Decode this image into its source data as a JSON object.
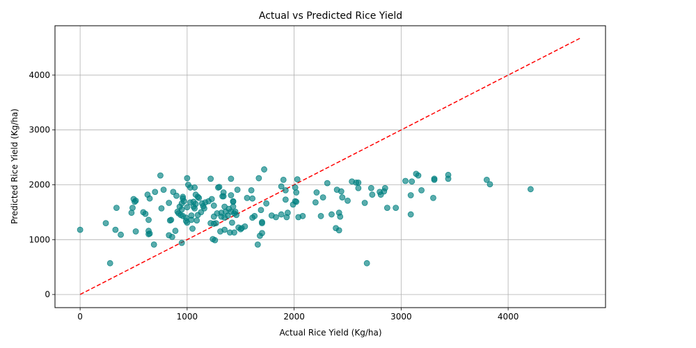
{
  "chart_data": {
    "type": "scatter",
    "title": "Actual vs Predicted Rice Yield",
    "xlabel": "Actual Rice Yield (Kg/ha)",
    "ylabel": "Predicted Rice Yield (Kg/ha)",
    "xlim": [
      -235,
      4910
    ],
    "ylim": [
      -240,
      4900
    ],
    "xticks": [
      0,
      1000,
      2000,
      3000,
      4000
    ],
    "yticks": [
      0,
      1000,
      2000,
      3000,
      4000
    ],
    "xtick_labels": [
      "0",
      "1000",
      "2000",
      "3000",
      "4000"
    ],
    "ytick_labels": [
      "0",
      "1000",
      "2000",
      "3000",
      "4000"
    ],
    "grid": true,
    "point_color": "#008080",
    "point_alpha": 0.65,
    "reference_line": {
      "x": [
        0,
        4670
      ],
      "y": [
        0,
        4670
      ],
      "color": "#ff0000",
      "style": "dashed"
    },
    "points": [
      [
        0,
        1180
      ],
      [
        240,
        1300
      ],
      [
        280,
        570
      ],
      [
        330,
        1180
      ],
      [
        340,
        1580
      ],
      [
        380,
        1090
      ],
      [
        480,
        1490
      ],
      [
        490,
        1580
      ],
      [
        500,
        1740
      ],
      [
        510,
        1690
      ],
      [
        520,
        1710
      ],
      [
        520,
        1150
      ],
      [
        590,
        1500
      ],
      [
        610,
        1470
      ],
      [
        630,
        1820
      ],
      [
        640,
        1360
      ],
      [
        640,
        1100
      ],
      [
        640,
        1160
      ],
      [
        650,
        1750
      ],
      [
        650,
        1110
      ],
      [
        690,
        910
      ],
      [
        700,
        1870
      ],
      [
        750,
        2170
      ],
      [
        760,
        1570
      ],
      [
        780,
        1910
      ],
      [
        830,
        1670
      ],
      [
        830,
        1080
      ],
      [
        840,
        1350
      ],
      [
        850,
        1360
      ],
      [
        860,
        1050
      ],
      [
        870,
        1870
      ],
      [
        890,
        1160
      ],
      [
        900,
        1800
      ],
      [
        910,
        1510
      ],
      [
        920,
        1480
      ],
      [
        930,
        1600
      ],
      [
        940,
        1450
      ],
      [
        950,
        1550
      ],
      [
        950,
        1660
      ],
      [
        950,
        940
      ],
      [
        960,
        1750
      ],
      [
        960,
        1780
      ],
      [
        960,
        1430
      ],
      [
        970,
        1700
      ],
      [
        990,
        1400
      ],
      [
        990,
        1340
      ],
      [
        1000,
        1590
      ],
      [
        1000,
        1310
      ],
      [
        1000,
        2120
      ],
      [
        1010,
        2000
      ],
      [
        1030,
        1950
      ],
      [
        1030,
        1680
      ],
      [
        1040,
        1440
      ],
      [
        1040,
        1360
      ],
      [
        1050,
        1200
      ],
      [
        1060,
        1600
      ],
      [
        1060,
        1690
      ],
      [
        1070,
        1950
      ],
      [
        1070,
        1570
      ],
      [
        1080,
        1820
      ],
      [
        1080,
        1650
      ],
      [
        1090,
        1350
      ],
      [
        1100,
        1450
      ],
      [
        1100,
        1780
      ],
      [
        1110,
        1760
      ],
      [
        1130,
        1500
      ],
      [
        1140,
        1660
      ],
      [
        1150,
        1610
      ],
      [
        1160,
        1570
      ],
      [
        1170,
        1680
      ],
      [
        1200,
        1700
      ],
      [
        1220,
        1300
      ],
      [
        1220,
        2110
      ],
      [
        1230,
        1740
      ],
      [
        1240,
        1010
      ],
      [
        1250,
        1290
      ],
      [
        1250,
        1420
      ],
      [
        1250,
        1620
      ],
      [
        1260,
        990
      ],
      [
        1270,
        1300
      ],
      [
        1280,
        1480
      ],
      [
        1290,
        1950
      ],
      [
        1300,
        1960
      ],
      [
        1310,
        1150
      ],
      [
        1320,
        1490
      ],
      [
        1320,
        1420
      ],
      [
        1330,
        1790
      ],
      [
        1340,
        1860
      ],
      [
        1340,
        1790
      ],
      [
        1350,
        1180
      ],
      [
        1350,
        1400
      ],
      [
        1350,
        1600
      ],
      [
        1360,
        1510
      ],
      [
        1380,
        1440
      ],
      [
        1390,
        1560
      ],
      [
        1400,
        1130
      ],
      [
        1410,
        2110
      ],
      [
        1410,
        1510
      ],
      [
        1410,
        1810
      ],
      [
        1420,
        1310
      ],
      [
        1430,
        1700
      ],
      [
        1430,
        1690
      ],
      [
        1430,
        1600
      ],
      [
        1440,
        1130
      ],
      [
        1440,
        1480
      ],
      [
        1450,
        1510
      ],
      [
        1460,
        1450
      ],
      [
        1470,
        1910
      ],
      [
        1480,
        1220
      ],
      [
        1500,
        1190
      ],
      [
        1510,
        1210
      ],
      [
        1540,
        1240
      ],
      [
        1560,
        1760
      ],
      [
        1600,
        1900
      ],
      [
        1610,
        1750
      ],
      [
        1610,
        1400
      ],
      [
        1630,
        1430
      ],
      [
        1660,
        910
      ],
      [
        1670,
        2120
      ],
      [
        1680,
        1070
      ],
      [
        1690,
        1540
      ],
      [
        1700,
        1120
      ],
      [
        1700,
        1300
      ],
      [
        1700,
        1320
      ],
      [
        1720,
        2280
      ],
      [
        1740,
        1660
      ],
      [
        1790,
        1440
      ],
      [
        1830,
        1410
      ],
      [
        1880,
        1970
      ],
      [
        1880,
        1460
      ],
      [
        1900,
        2090
      ],
      [
        1920,
        1730
      ],
      [
        1920,
        1900
      ],
      [
        1930,
        1410
      ],
      [
        1940,
        1490
      ],
      [
        1990,
        1640
      ],
      [
        2010,
        1700
      ],
      [
        2010,
        1950
      ],
      [
        2020,
        1860
      ],
      [
        2020,
        1690
      ],
      [
        2030,
        2100
      ],
      [
        2040,
        1410
      ],
      [
        2080,
        1430
      ],
      [
        2200,
        1680
      ],
      [
        2210,
        1860
      ],
      [
        2250,
        1430
      ],
      [
        2270,
        1770
      ],
      [
        2310,
        2030
      ],
      [
        2350,
        1460
      ],
      [
        2390,
        1210
      ],
      [
        2400,
        1910
      ],
      [
        2420,
        1170
      ],
      [
        2420,
        1490
      ],
      [
        2430,
        1420
      ],
      [
        2440,
        1880
      ],
      [
        2450,
        1770
      ],
      [
        2500,
        1710
      ],
      [
        2540,
        2060
      ],
      [
        2580,
        2040
      ],
      [
        2600,
        1940
      ],
      [
        2600,
        2040
      ],
      [
        2660,
        1670
      ],
      [
        2680,
        570
      ],
      [
        2720,
        1940
      ],
      [
        2730,
        1820
      ],
      [
        2800,
        1870
      ],
      [
        2810,
        1820
      ],
      [
        2840,
        1880
      ],
      [
        2850,
        1940
      ],
      [
        2870,
        1580
      ],
      [
        2950,
        1580
      ],
      [
        3040,
        2070
      ],
      [
        3090,
        1460
      ],
      [
        3090,
        1810
      ],
      [
        3100,
        2060
      ],
      [
        3140,
        2200
      ],
      [
        3160,
        2170
      ],
      [
        3190,
        1900
      ],
      [
        3300,
        1760
      ],
      [
        3310,
        2110
      ],
      [
        3310,
        2090
      ],
      [
        3440,
        2180
      ],
      [
        3440,
        2110
      ],
      [
        3800,
        2090
      ],
      [
        3830,
        2010
      ],
      [
        4210,
        1920
      ]
    ]
  }
}
